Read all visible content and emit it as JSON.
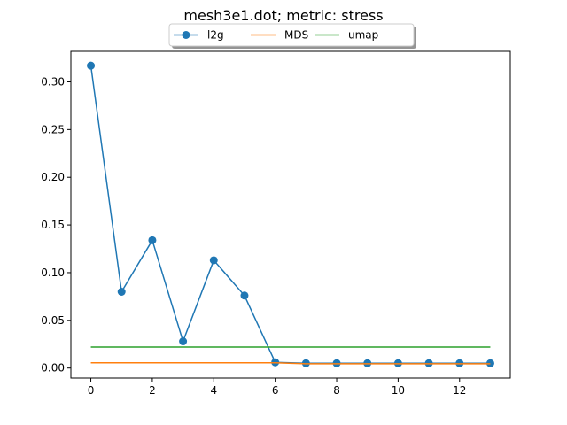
{
  "chart_data": {
    "type": "line",
    "title": "mesh3e1.dot; metric: stress",
    "xlabel": "",
    "ylabel": "",
    "xlim": [
      -0.65,
      13.65
    ],
    "ylim": [
      -0.0105,
      0.332
    ],
    "xticks": [
      0,
      2,
      4,
      6,
      8,
      10,
      12
    ],
    "yticks": [
      0.0,
      0.05,
      0.1,
      0.15,
      0.2,
      0.25,
      0.3
    ],
    "ytick_labels": [
      "0.00",
      "0.05",
      "0.10",
      "0.15",
      "0.20",
      "0.25",
      "0.30"
    ],
    "legend_position": "top-center",
    "grid": false,
    "series": [
      {
        "name": "l2g",
        "color": "#1f77b4",
        "marker": "circle",
        "x": [
          0,
          1,
          2,
          3,
          4,
          5,
          6,
          7,
          8,
          9,
          10,
          11,
          12,
          13
        ],
        "values": [
          0.317,
          0.08,
          0.134,
          0.028,
          0.113,
          0.076,
          0.006,
          0.005,
          0.005,
          0.005,
          0.005,
          0.005,
          0.005,
          0.005
        ]
      },
      {
        "name": "MDS",
        "color": "#ff7f0e",
        "marker": "none",
        "x": [
          0,
          1,
          2,
          3,
          4,
          5,
          6,
          7,
          8,
          9,
          10,
          11,
          12,
          13
        ],
        "values": [
          0.0055,
          0.0055,
          0.0055,
          0.0055,
          0.0055,
          0.0055,
          0.0055,
          0.0045,
          0.0045,
          0.0045,
          0.0045,
          0.0045,
          0.0045,
          0.0045
        ]
      },
      {
        "name": "umap",
        "color": "#2ca02c",
        "marker": "none",
        "x": [
          0,
          1,
          2,
          3,
          4,
          5,
          6,
          7,
          8,
          9,
          10,
          11,
          12,
          13
        ],
        "values": [
          0.022,
          0.022,
          0.022,
          0.022,
          0.022,
          0.022,
          0.022,
          0.022,
          0.022,
          0.022,
          0.022,
          0.022,
          0.022,
          0.022
        ]
      }
    ]
  }
}
